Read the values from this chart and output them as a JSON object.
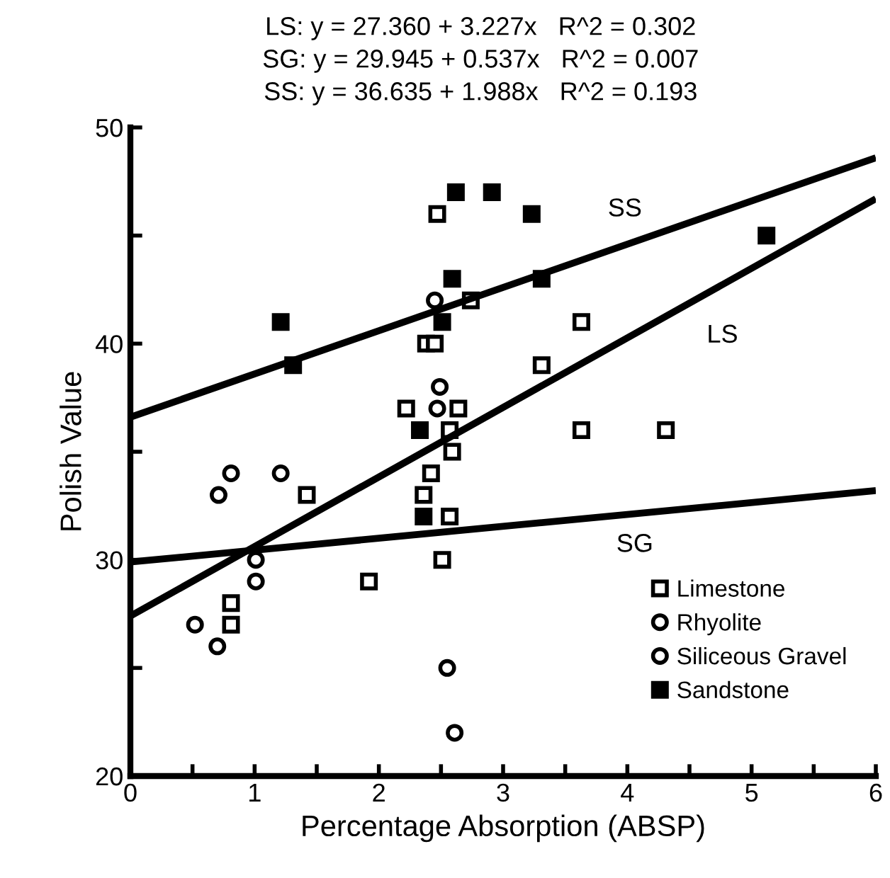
{
  "chart_data": {
    "type": "scatter",
    "xlabel": "Percentage Absorption (ABSP)",
    "ylabel": "Polish Value",
    "annotations": [
      "LS: y = 27.360 + 3.227x   R^2 = 0.302",
      "SG: y = 29.945 + 0.537x   R^2 = 0.007",
      "SS: y = 36.635 + 1.988x   R^2 = 0.193"
    ],
    "series": [
      {
        "name": "Limestone",
        "color": "#ffffff",
        "marker": "square",
        "x": [
          2.47,
          2.74,
          2.38,
          2.45,
          2.22,
          2.64,
          2.57,
          2.59,
          2.42,
          1.42,
          2.36,
          3.63,
          3.31,
          3.63,
          4.31,
          2.57,
          2.51,
          1.92,
          0.81,
          0.81
        ],
        "values": [
          46,
          42,
          40,
          40,
          37,
          37,
          36,
          35,
          34,
          33,
          33,
          41,
          39,
          36,
          36,
          32,
          30,
          29,
          28,
          27
        ]
      },
      {
        "name": "Rhyolite",
        "color": "#ffffff",
        "marker": "circle",
        "x": [
          2.55,
          2.61
        ],
        "values": [
          25,
          22
        ]
      },
      {
        "name": "Siliceous Gravel",
        "color": "#ffffff",
        "marker": "circle",
        "x": [
          2.45,
          2.49,
          2.47,
          0.81,
          1.21,
          0.71,
          1.01,
          1.01,
          0.52,
          0.7
        ],
        "values": [
          42,
          38,
          37,
          34,
          34,
          33,
          30,
          29,
          27,
          26
        ]
      },
      {
        "name": "Sandstone",
        "color": "#000000",
        "marker": "square",
        "x": [
          1.21,
          1.31,
          2.33,
          2.36,
          2.51,
          2.59,
          2.62,
          2.91,
          3.23,
          3.31,
          5.12
        ],
        "values": [
          41,
          39,
          36,
          32,
          41,
          43,
          47,
          47,
          46,
          43,
          45
        ]
      },
      {
        "type": "line",
        "name": "LS",
        "color": "#000000",
        "x": [
          0,
          6
        ],
        "values": [
          27.4,
          46.7
        ]
      },
      {
        "type": "line",
        "name": "SG",
        "color": "#000000",
        "x": [
          0,
          6
        ],
        "values": [
          29.9,
          33.2
        ]
      },
      {
        "type": "line",
        "name": "SS",
        "color": "#000000",
        "x": [
          0,
          6
        ],
        "values": [
          36.6,
          48.6
        ]
      }
    ],
    "xlim": [
      0,
      6
    ],
    "ylim": [
      20,
      50
    ],
    "xticks": [
      0,
      {
        "value": 0.5,
        "label": null
      },
      1,
      {
        "value": 1.5,
        "label": null
      },
      2,
      {
        "value": 2.5,
        "label": null
      },
      3,
      {
        "value": 3.5,
        "label": null
      },
      4,
      {
        "value": 4.5,
        "label": null
      },
      5,
      {
        "value": 5.5,
        "label": null
      },
      6
    ],
    "yticks": [
      20,
      {
        "value": 25,
        "label": null
      },
      30,
      {
        "value": 35,
        "label": null
      },
      40,
      {
        "value": 45,
        "label": null
      },
      50
    ],
    "grid": false,
    "legend": "bottom right",
    "line_style": "solid"
  }
}
